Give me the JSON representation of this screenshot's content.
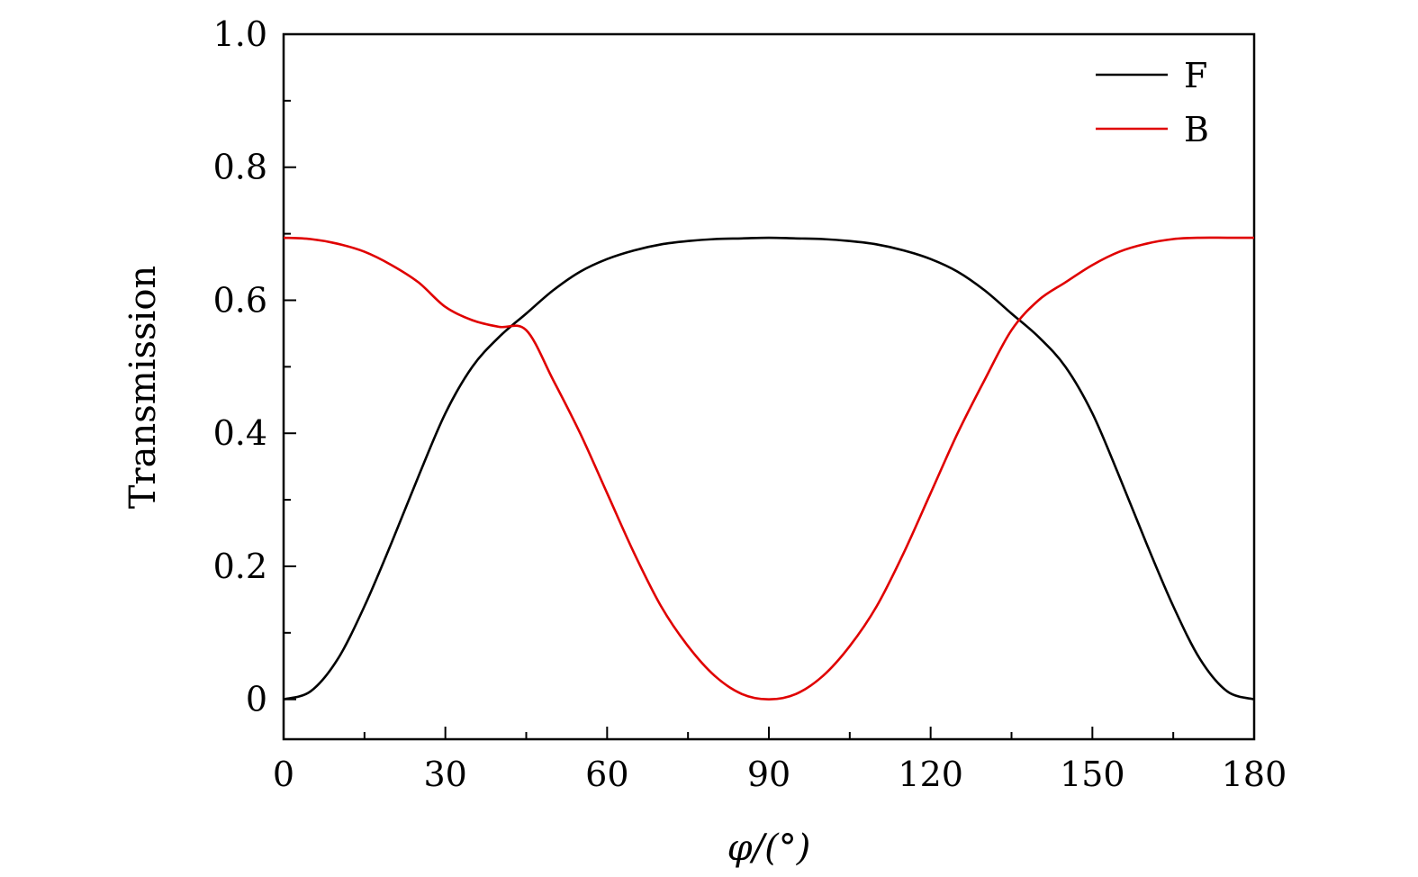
{
  "chart_data": {
    "type": "line",
    "xlabel": "φ/(°)",
    "ylabel": "Transmission",
    "xlim": [
      0,
      180
    ],
    "ylim": [
      -0.06,
      1.0
    ],
    "xticks": [
      0,
      30,
      60,
      90,
      120,
      150,
      180
    ],
    "xtick_labels": [
      "0",
      "30",
      "60",
      "90",
      "120",
      "150",
      "180"
    ],
    "x_minor_ticks": [
      15,
      45,
      75,
      105,
      135,
      165
    ],
    "yticks": [
      0,
      0.2,
      0.4,
      0.6,
      0.8,
      1.0
    ],
    "ytick_labels": [
      "0",
      "0.2",
      "0.4",
      "0.6",
      "0.8",
      "1.0"
    ],
    "y_minor_ticks": [
      0.1,
      0.3,
      0.5,
      0.7,
      0.9
    ],
    "grid": false,
    "legend_position": "top-right",
    "x": [
      0,
      5,
      10,
      15,
      20,
      25,
      30,
      35,
      40,
      45,
      50,
      55,
      60,
      65,
      70,
      75,
      80,
      85,
      90,
      95,
      100,
      105,
      110,
      115,
      120,
      125,
      130,
      135,
      140,
      145,
      150,
      155,
      160,
      165,
      170,
      175,
      180
    ],
    "series": [
      {
        "name": "F",
        "color": "#000000",
        "values": [
          0.0,
          0.012,
          0.06,
          0.14,
          0.235,
          0.335,
          0.43,
          0.5,
          0.545,
          0.58,
          0.615,
          0.643,
          0.662,
          0.675,
          0.684,
          0.689,
          0.692,
          0.693,
          0.694,
          0.693,
          0.692,
          0.689,
          0.684,
          0.675,
          0.662,
          0.643,
          0.615,
          0.58,
          0.545,
          0.5,
          0.43,
          0.335,
          0.235,
          0.14,
          0.06,
          0.012,
          0.0
        ]
      },
      {
        "name": "B",
        "color": "#e00000",
        "values": [
          0.694,
          0.692,
          0.685,
          0.673,
          0.653,
          0.627,
          0.59,
          0.57,
          0.56,
          0.555,
          0.48,
          0.4,
          0.31,
          0.22,
          0.14,
          0.08,
          0.035,
          0.008,
          0.0,
          0.008,
          0.035,
          0.08,
          0.14,
          0.22,
          0.31,
          0.4,
          0.48,
          0.555,
          0.6,
          0.627,
          0.653,
          0.673,
          0.685,
          0.692,
          0.694,
          0.694,
          0.694
        ]
      }
    ]
  }
}
